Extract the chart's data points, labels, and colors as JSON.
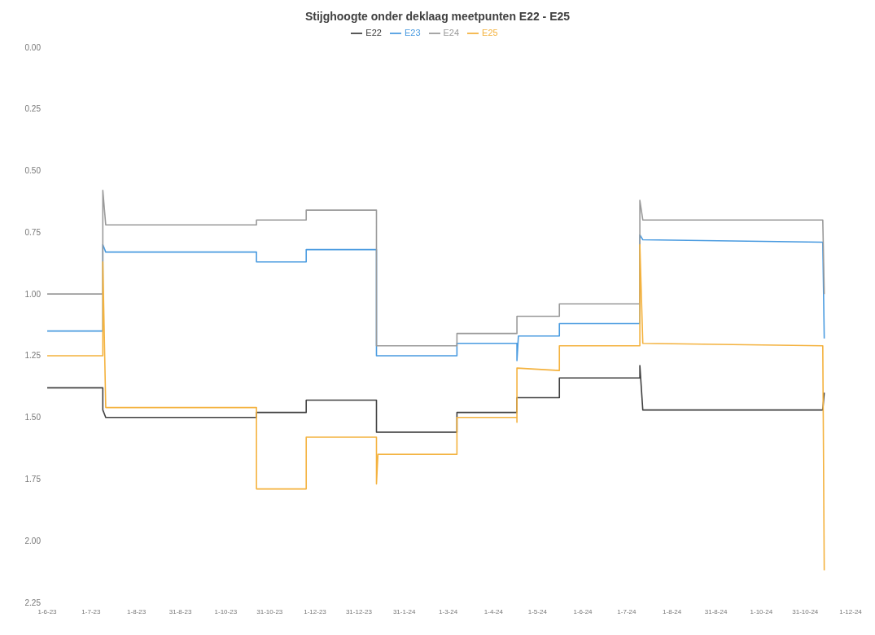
{
  "chart_data": {
    "type": "line",
    "title": "Stijghoogte onder deklaag meetpunten E22 - E25",
    "ylim": [
      2.25,
      0
    ],
    "yticks": [
      {
        "value": 0,
        "label": "0.00"
      },
      {
        "value": 0.25,
        "label": "0.25"
      },
      {
        "value": 0.5,
        "label": "0.50"
      },
      {
        "value": 0.75,
        "label": "0.75"
      },
      {
        "value": 1,
        "label": "1.00"
      },
      {
        "value": 1.25,
        "label": "1.25"
      },
      {
        "value": 1.5,
        "label": "1.50"
      },
      {
        "value": 1.75,
        "label": "1.75"
      },
      {
        "value": 2,
        "label": "2.00"
      },
      {
        "value": 2.25,
        "label": "2.25"
      }
    ],
    "xlim": [
      "2023-06-01",
      "2024-12-01"
    ],
    "xticks": [
      {
        "value": "2023-06-01",
        "label": "1-6-23"
      },
      {
        "value": "2023-07-01",
        "label": "1-7-23"
      },
      {
        "value": "2023-08-01",
        "label": "1-8-23"
      },
      {
        "value": "2023-08-31",
        "label": "31-8-23"
      },
      {
        "value": "2023-10-01",
        "label": "1-10-23"
      },
      {
        "value": "2023-10-31",
        "label": "31-10-23"
      },
      {
        "value": "2023-12-01",
        "label": "1-12-23"
      },
      {
        "value": "2023-12-31",
        "label": "31-12-23"
      },
      {
        "value": "2024-01-31",
        "label": "31-1-24"
      },
      {
        "value": "2024-03-01",
        "label": "1-3-24"
      },
      {
        "value": "2024-04-01",
        "label": "1-4-24"
      },
      {
        "value": "2024-05-01",
        "label": "1-5-24"
      },
      {
        "value": "2024-06-01",
        "label": "1-6-24"
      },
      {
        "value": "2024-07-01",
        "label": "1-7-24"
      },
      {
        "value": "2024-08-01",
        "label": "1-8-24"
      },
      {
        "value": "2024-08-31",
        "label": "31-8-24"
      },
      {
        "value": "2024-10-01",
        "label": "1-10-24"
      },
      {
        "value": "2024-10-31",
        "label": "31-10-24"
      },
      {
        "value": "2024-12-01",
        "label": "1-12-24"
      }
    ],
    "grid": false,
    "legend": "top",
    "series": [
      {
        "name": "E22",
        "color": "#404040",
        "x": [
          "2023-06-01",
          "2023-07-09",
          "2023-07-09",
          "2023-07-11",
          "2023-10-22",
          "2023-10-22",
          "2023-11-25",
          "2023-11-25",
          "2024-01-12",
          "2024-01-12",
          "2024-03-07",
          "2024-03-07",
          "2024-04-17",
          "2024-04-17",
          "2024-05-16",
          "2024-05-16",
          "2024-07-10",
          "2024-07-10",
          "2024-07-12",
          "2024-11-12",
          "2024-11-13"
        ],
        "values": [
          1.38,
          1.38,
          1.47,
          1.5,
          1.5,
          1.48,
          1.48,
          1.43,
          1.43,
          1.56,
          1.56,
          1.48,
          1.48,
          1.42,
          1.42,
          1.34,
          1.34,
          1.29,
          1.47,
          1.47,
          1.4
        ]
      },
      {
        "name": "E23",
        "color": "#4a9be0",
        "x": [
          "2023-06-01",
          "2023-07-09",
          "2023-07-09",
          "2023-07-11",
          "2023-10-22",
          "2023-10-22",
          "2023-11-25",
          "2023-11-25",
          "2024-01-12",
          "2024-01-12",
          "2024-03-07",
          "2024-03-07",
          "2024-04-17",
          "2024-04-17",
          "2024-04-18",
          "2024-05-16",
          "2024-05-16",
          "2024-07-10",
          "2024-07-10",
          "2024-07-12",
          "2024-11-12",
          "2024-11-13"
        ],
        "values": [
          1.15,
          1.15,
          0.8,
          0.83,
          0.83,
          0.87,
          0.87,
          0.82,
          0.82,
          1.25,
          1.25,
          1.2,
          1.2,
          1.27,
          1.17,
          1.17,
          1.12,
          1.12,
          0.76,
          0.78,
          0.79,
          1.18
        ]
      },
      {
        "name": "E24",
        "color": "#9a9a9a",
        "x": [
          "2023-06-01",
          "2023-07-09",
          "2023-07-09",
          "2023-07-11",
          "2023-10-22",
          "2023-10-22",
          "2023-11-25",
          "2023-11-25",
          "2024-01-12",
          "2024-01-12",
          "2024-03-07",
          "2024-03-07",
          "2024-04-17",
          "2024-04-17",
          "2024-05-16",
          "2024-05-16",
          "2024-07-10",
          "2024-07-10",
          "2024-07-12",
          "2024-11-12",
          "2024-11-13"
        ],
        "values": [
          1.0,
          1.0,
          0.58,
          0.72,
          0.72,
          0.7,
          0.7,
          0.66,
          0.66,
          1.21,
          1.21,
          1.16,
          1.16,
          1.09,
          1.09,
          1.04,
          1.04,
          0.62,
          0.7,
          0.7,
          1.0
        ]
      },
      {
        "name": "E25",
        "color": "#f4b23e",
        "x": [
          "2023-06-01",
          "2023-07-09",
          "2023-07-09",
          "2023-07-11",
          "2023-10-22",
          "2023-10-22",
          "2023-11-25",
          "2023-11-25",
          "2024-01-12",
          "2024-01-12",
          "2024-01-13",
          "2024-03-07",
          "2024-03-07",
          "2024-04-17",
          "2024-04-17",
          "2024-04-17",
          "2024-05-16",
          "2024-05-16",
          "2024-07-10",
          "2024-07-10",
          "2024-07-12",
          "2024-11-12",
          "2024-11-13"
        ],
        "values": [
          1.25,
          1.25,
          0.87,
          1.46,
          1.46,
          1.79,
          1.79,
          1.58,
          1.58,
          1.77,
          1.65,
          1.65,
          1.5,
          1.5,
          1.52,
          1.3,
          1.31,
          1.21,
          1.21,
          0.8,
          1.2,
          1.21,
          2.12
        ]
      }
    ]
  }
}
